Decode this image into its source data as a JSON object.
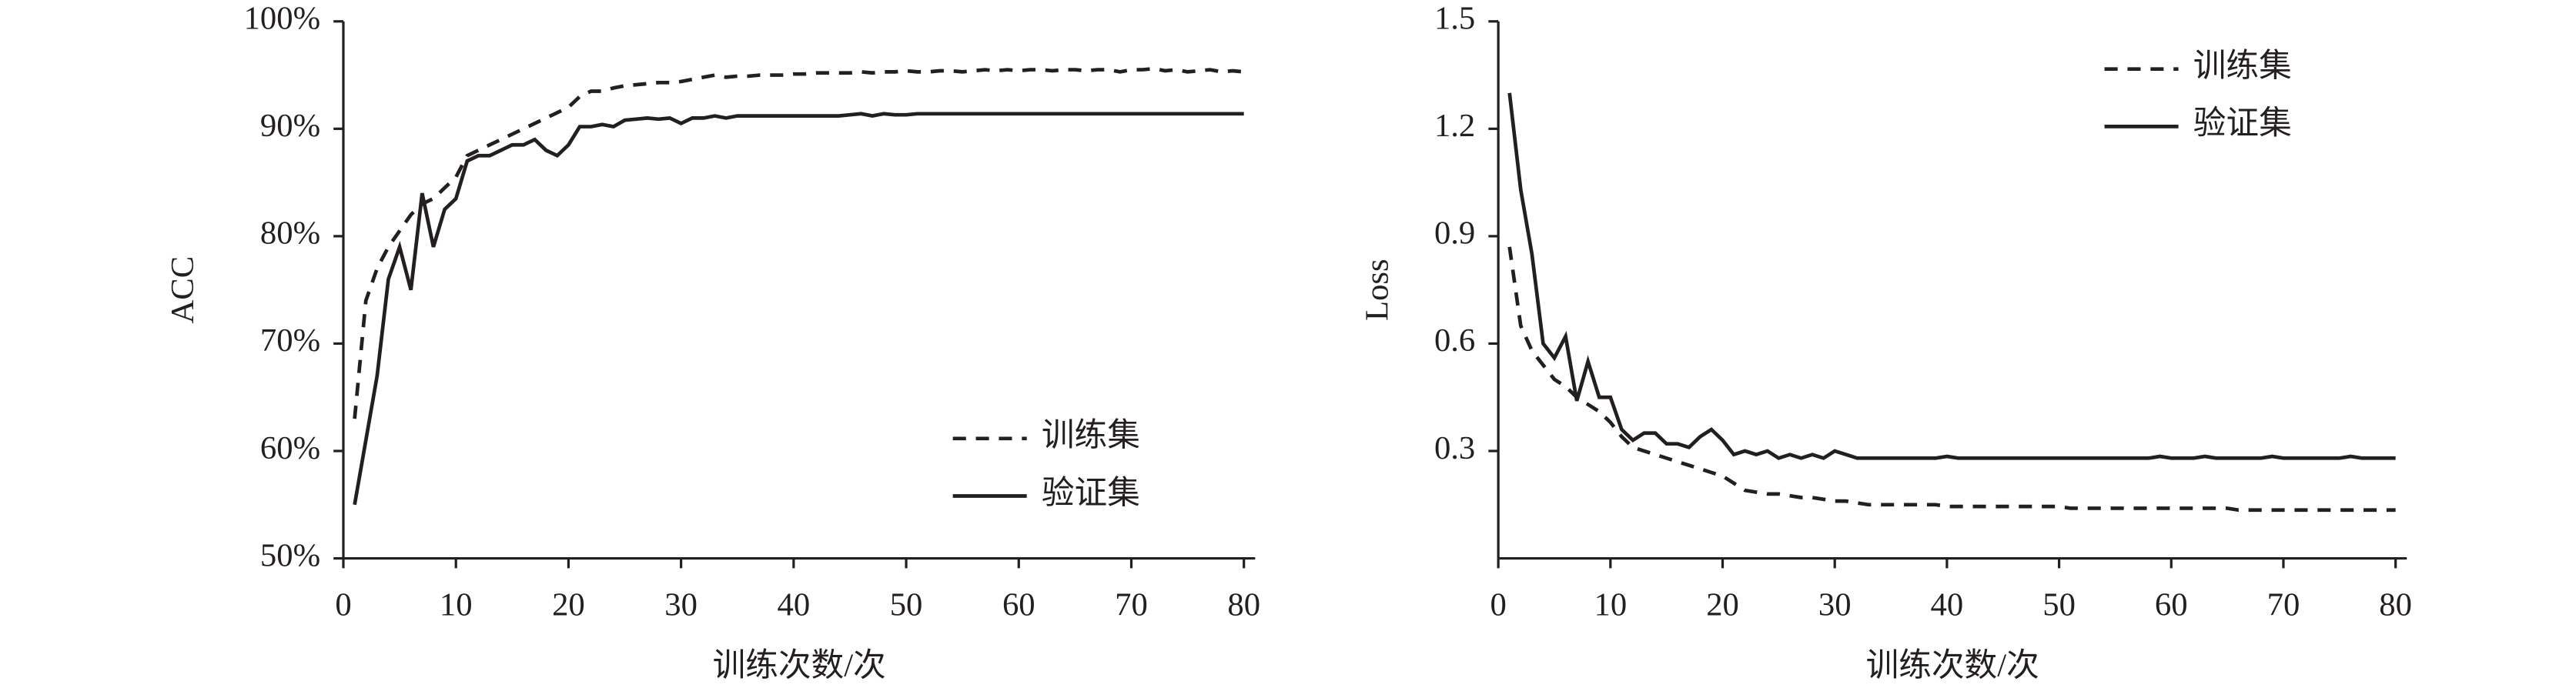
{
  "chart_data": [
    {
      "type": "line",
      "ylabel": "ACC",
      "xlabel": "训练次数/次",
      "x": [
        1,
        2,
        3,
        4,
        5,
        6,
        7,
        8,
        9,
        10,
        11,
        12,
        13,
        14,
        15,
        16,
        17,
        18,
        19,
        20,
        21,
        22,
        23,
        24,
        25,
        26,
        27,
        28,
        29,
        30,
        31,
        32,
        33,
        34,
        35,
        36,
        37,
        38,
        39,
        40,
        41,
        42,
        43,
        44,
        45,
        46,
        47,
        48,
        49,
        50,
        51,
        52,
        53,
        54,
        55,
        56,
        57,
        58,
        59,
        60,
        61,
        62,
        63,
        64,
        65,
        66,
        67,
        68,
        69,
        70,
        71,
        72,
        73,
        74,
        75,
        76,
        77,
        78,
        79,
        80
      ],
      "xlim": [
        0,
        81
      ],
      "xticks": [
        0,
        10,
        20,
        30,
        40,
        50,
        60,
        70,
        80
      ],
      "ylim": [
        50,
        100
      ],
      "yticks": [
        {
          "value": 50,
          "label": "50%"
        },
        {
          "value": 60,
          "label": "60%"
        },
        {
          "value": 70,
          "label": "70%"
        },
        {
          "value": 80,
          "label": "80%"
        },
        {
          "value": 90,
          "label": "90%"
        },
        {
          "value": 100,
          "label": "100%"
        }
      ],
      "legend": "lower right",
      "series": [
        {
          "name": "训练集",
          "color": "#231f20",
          "line_style": "dashed",
          "values": [
            63,
            74,
            77,
            79,
            80.5,
            82,
            83,
            83.5,
            84.5,
            85.5,
            87.5,
            88,
            88.5,
            89,
            89.5,
            90,
            90.5,
            91,
            91.5,
            92,
            93,
            93.5,
            93.5,
            93.8,
            94,
            94.1,
            94.2,
            94.3,
            94.3,
            94.4,
            94.6,
            94.8,
            95,
            94.8,
            94.9,
            94.9,
            95,
            95,
            95,
            95.1,
            95.1,
            95.2,
            95.2,
            95.2,
            95.2,
            95.3,
            95.2,
            95.3,
            95.3,
            95.4,
            95.3,
            95.3,
            95.4,
            95.4,
            95.3,
            95.4,
            95.5,
            95.4,
            95.5,
            95.4,
            95.5,
            95.5,
            95.4,
            95.5,
            95.5,
            95.4,
            95.5,
            95.5,
            95.3,
            95.5,
            95.5,
            95.6,
            95.4,
            95.5,
            95.3,
            95.4,
            95.5,
            95.3,
            95.4,
            95.3
          ]
        },
        {
          "name": "验证集",
          "color": "#231f20",
          "line_style": "solid",
          "values": [
            55,
            61,
            67,
            76,
            79,
            75,
            84,
            79,
            82.5,
            83.5,
            87,
            87.5,
            87.5,
            88,
            88.5,
            88.5,
            89,
            88,
            87.5,
            88.5,
            90.2,
            90.2,
            90.4,
            90.2,
            90.8,
            90.9,
            91,
            90.9,
            91,
            90.5,
            91,
            91,
            91.2,
            91,
            91.2,
            91.2,
            91.2,
            91.2,
            91.2,
            91.2,
            91.2,
            91.2,
            91.2,
            91.2,
            91.3,
            91.4,
            91.2,
            91.4,
            91.3,
            91.3,
            91.4,
            91.4,
            91.4,
            91.4,
            91.4,
            91.4,
            91.4,
            91.4,
            91.4,
            91.4,
            91.4,
            91.4,
            91.4,
            91.4,
            91.4,
            91.4,
            91.4,
            91.4,
            91.4,
            91.4,
            91.4,
            91.4,
            91.4,
            91.4,
            91.4,
            91.4,
            91.4,
            91.4,
            91.4,
            91.4
          ]
        }
      ]
    },
    {
      "type": "line",
      "ylabel": "Loss",
      "xlabel": "训练次数/次",
      "x": [
        1,
        2,
        3,
        4,
        5,
        6,
        7,
        8,
        9,
        10,
        11,
        12,
        13,
        14,
        15,
        16,
        17,
        18,
        19,
        20,
        21,
        22,
        23,
        24,
        25,
        26,
        27,
        28,
        29,
        30,
        31,
        32,
        33,
        34,
        35,
        36,
        37,
        38,
        39,
        40,
        41,
        42,
        43,
        44,
        45,
        46,
        47,
        48,
        49,
        50,
        51,
        52,
        53,
        54,
        55,
        56,
        57,
        58,
        59,
        60,
        61,
        62,
        63,
        64,
        65,
        66,
        67,
        68,
        69,
        70,
        71,
        72,
        73,
        74,
        75,
        76,
        77,
        78,
        79,
        80
      ],
      "xlim": [
        0,
        81
      ],
      "xticks": [
        0,
        10,
        20,
        30,
        40,
        50,
        60,
        70,
        80
      ],
      "ylim": [
        0,
        1.5
      ],
      "yticks": [
        0.3,
        0.6,
        0.9,
        1.2,
        1.5
      ],
      "legend": "upper right",
      "series": [
        {
          "name": "训练集",
          "color": "#231f20",
          "line_style": "dashed",
          "values": [
            0.87,
            0.65,
            0.58,
            0.54,
            0.5,
            0.48,
            0.45,
            0.43,
            0.41,
            0.38,
            0.34,
            0.31,
            0.3,
            0.29,
            0.28,
            0.27,
            0.26,
            0.25,
            0.24,
            0.23,
            0.21,
            0.19,
            0.185,
            0.18,
            0.18,
            0.175,
            0.17,
            0.17,
            0.165,
            0.16,
            0.16,
            0.155,
            0.15,
            0.15,
            0.15,
            0.15,
            0.15,
            0.15,
            0.15,
            0.145,
            0.145,
            0.145,
            0.145,
            0.145,
            0.145,
            0.145,
            0.145,
            0.145,
            0.145,
            0.145,
            0.14,
            0.14,
            0.14,
            0.14,
            0.14,
            0.14,
            0.14,
            0.14,
            0.14,
            0.14,
            0.14,
            0.14,
            0.14,
            0.14,
            0.14,
            0.135,
            0.135,
            0.135,
            0.135,
            0.135,
            0.135,
            0.135,
            0.135,
            0.135,
            0.135,
            0.135,
            0.135,
            0.135,
            0.135,
            0.135
          ]
        },
        {
          "name": "验证集",
          "color": "#231f20",
          "line_style": "solid",
          "values": [
            1.3,
            1.03,
            0.85,
            0.6,
            0.56,
            0.62,
            0.44,
            0.55,
            0.45,
            0.45,
            0.36,
            0.33,
            0.35,
            0.35,
            0.32,
            0.32,
            0.31,
            0.34,
            0.36,
            0.33,
            0.29,
            0.3,
            0.29,
            0.3,
            0.28,
            0.29,
            0.28,
            0.29,
            0.28,
            0.3,
            0.29,
            0.28,
            0.28,
            0.28,
            0.28,
            0.28,
            0.28,
            0.28,
            0.28,
            0.285,
            0.28,
            0.28,
            0.28,
            0.28,
            0.28,
            0.28,
            0.28,
            0.28,
            0.28,
            0.28,
            0.28,
            0.28,
            0.28,
            0.28,
            0.28,
            0.28,
            0.28,
            0.28,
            0.285,
            0.28,
            0.28,
            0.28,
            0.285,
            0.28,
            0.28,
            0.28,
            0.28,
            0.28,
            0.285,
            0.28,
            0.28,
            0.28,
            0.28,
            0.28,
            0.28,
            0.285,
            0.28,
            0.28,
            0.28,
            0.28
          ]
        }
      ]
    }
  ]
}
